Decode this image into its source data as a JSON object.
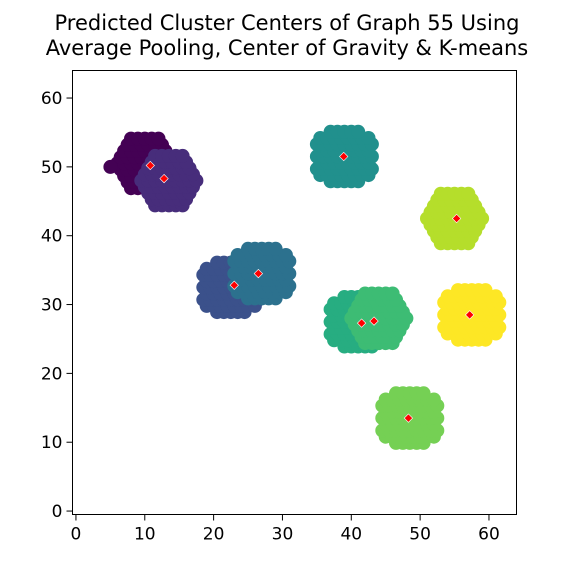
{
  "chart_data": {
    "type": "scatter",
    "title": "Predicted Cluster Centers of Graph 55 Using\nAverage Pooling, Center of Gravity & K-means",
    "xlabel": "",
    "ylabel": "",
    "xlim": [
      -0.5,
      64
    ],
    "ylim": [
      -0.5,
      64
    ],
    "xticks": [
      0,
      10,
      20,
      30,
      40,
      50,
      60
    ],
    "yticks": [
      0,
      10,
      20,
      30,
      40,
      50,
      60
    ],
    "grid": false,
    "legend": "none",
    "clusters": [
      {
        "color": "#440154",
        "center": [
          10,
          50.5
        ],
        "radius": 4.2,
        "outliers": [
          [
            5,
            50
          ]
        ]
      },
      {
        "color": "#472d7b",
        "center": [
          13.5,
          48
        ],
        "radius": 4.2,
        "outliers": []
      },
      {
        "color": "#3b518b",
        "center": [
          22.5,
          32.5
        ],
        "radius": 4.5,
        "outliers": []
      },
      {
        "color": "#2c718e",
        "center": [
          27,
          34.5
        ],
        "radius": 4.5,
        "outliers": []
      },
      {
        "color": "#21908d",
        "center": [
          39,
          51.5
        ],
        "radius": 4.5,
        "outliers": []
      },
      {
        "color": "#27ad81",
        "center": [
          41,
          27.5
        ],
        "radius": 4.5,
        "outliers": []
      },
      {
        "color": "#3dbc74",
        "center": [
          44,
          28
        ],
        "radius": 4.3,
        "outliers": []
      },
      {
        "color": "#75d054",
        "center": [
          48.5,
          13.5
        ],
        "radius": 4.5,
        "outliers": []
      },
      {
        "color": "#b5de2b",
        "center": [
          55,
          42.5
        ],
        "radius": 4.3,
        "outliers": []
      },
      {
        "color": "#fde725",
        "center": [
          57.5,
          28.5
        ],
        "radius": 4.5,
        "outliers": []
      }
    ],
    "predicted_centers": [
      [
        10.8,
        50.2
      ],
      [
        12.8,
        48.3
      ],
      [
        23,
        32.8
      ],
      [
        26.5,
        34.5
      ],
      [
        38.9,
        51.5
      ],
      [
        41.5,
        27.3
      ],
      [
        43.3,
        27.6
      ],
      [
        48.3,
        13.5
      ],
      [
        55.3,
        42.5
      ],
      [
        57.2,
        28.5
      ]
    ],
    "marker_colors": {
      "point_edge": "#ffffff",
      "center": "#ff0000",
      "center_edge": "#ffffff"
    }
  }
}
